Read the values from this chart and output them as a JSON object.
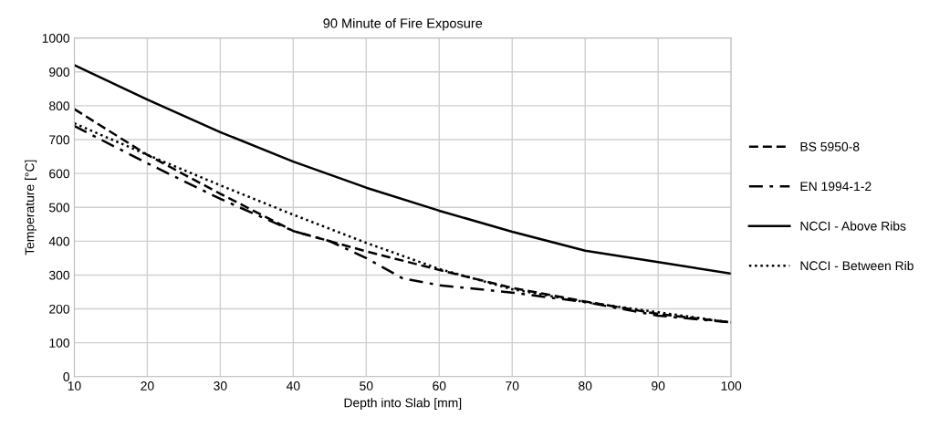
{
  "chart_data": {
    "type": "line",
    "title": "90 Minute of Fire Exposure",
    "xlabel": "Depth into Slab [mm]",
    "ylabel": "Temperature [°C]",
    "xlim": [
      10,
      100
    ],
    "xticks": [
      10,
      20,
      30,
      40,
      50,
      60,
      70,
      80,
      90,
      100
    ],
    "ylim": [
      0,
      1000
    ],
    "yticks": [
      0,
      100,
      200,
      300,
      400,
      500,
      600,
      700,
      800,
      900,
      1000
    ],
    "grid": true,
    "legend": "right",
    "marker": "none",
    "series": [
      {
        "name": "BS 5950-8",
        "color": "#000000",
        "line_style": "dashed",
        "x": [
          10,
          20,
          30,
          40,
          50,
          60,
          70,
          80,
          90,
          100
        ],
        "values": [
          790,
          655,
          540,
          430,
          370,
          315,
          262,
          222,
          185,
          160
        ]
      },
      {
        "name": "EN 1994-1-2",
        "color": "#000000",
        "line_style": "dashdot",
        "x": [
          10,
          20,
          30,
          40,
          45,
          50,
          55,
          60,
          70,
          80,
          90,
          100
        ],
        "values": [
          740,
          630,
          525,
          430,
          400,
          350,
          290,
          270,
          248,
          220,
          180,
          160
        ]
      },
      {
        "name": "NCCI - Above Ribs",
        "color": "#000000",
        "line_style": "solid",
        "x": [
          10,
          20,
          30,
          40,
          50,
          60,
          70,
          80,
          90,
          100
        ],
        "values": [
          920,
          818,
          722,
          635,
          558,
          490,
          428,
          372,
          338,
          304
        ]
      },
      {
        "name": "NCCI - Between Rib",
        "color": "#000000",
        "line_style": "dotted",
        "x": [
          10,
          20,
          30,
          40,
          50,
          60,
          70,
          80,
          90,
          100
        ],
        "values": [
          748,
          655,
          565,
          478,
          395,
          318,
          258,
          220,
          190,
          160
        ]
      }
    ]
  }
}
